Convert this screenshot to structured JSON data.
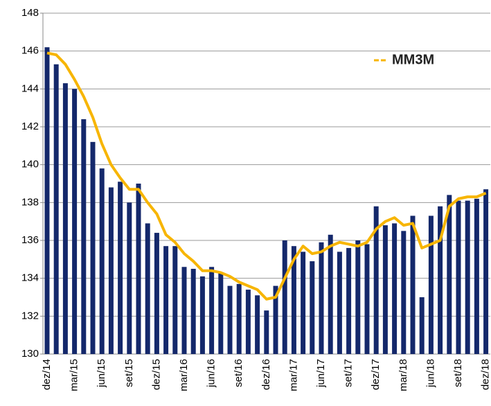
{
  "chart_data": {
    "type": "bar_line",
    "categories": [
      "dez/14",
      null,
      null,
      "mar/15",
      null,
      null,
      "jun/15",
      null,
      null,
      "set/15",
      null,
      null,
      "dez/15",
      null,
      null,
      "mar/16",
      null,
      null,
      "jun/16",
      null,
      null,
      "set/16",
      null,
      null,
      "dez/16",
      null,
      null,
      "mar/17",
      null,
      null,
      "jun/17",
      null,
      null,
      "set/17",
      null,
      null,
      "dez/17",
      null,
      null,
      "mar/18",
      null,
      null,
      "jun/18",
      null,
      null,
      "set/18",
      null,
      null,
      "dez/18"
    ],
    "series": [
      {
        "type": "bar",
        "color": "#14286b",
        "values": [
          146.2,
          145.3,
          144.3,
          144.0,
          142.4,
          141.2,
          139.8,
          138.8,
          139.1,
          138.0,
          139.0,
          136.9,
          136.4,
          135.7,
          135.7,
          134.6,
          134.5,
          134.1,
          134.6,
          134.3,
          133.6,
          133.7,
          133.4,
          133.1,
          132.3,
          133.6,
          136.0,
          135.7,
          135.4,
          134.9,
          135.9,
          136.3,
          135.4,
          135.6,
          136.0,
          135.8,
          137.8,
          136.8,
          136.9,
          136.5,
          137.3,
          133.0,
          137.3,
          137.8,
          138.4,
          138.1,
          138.1,
          138.2,
          138.7
        ]
      },
      {
        "type": "line",
        "name": "MM3M",
        "color": "#f7b500",
        "values": [
          145.9,
          145.8,
          145.3,
          144.5,
          143.6,
          142.5,
          141.1,
          140.0,
          139.3,
          138.7,
          138.7,
          138.0,
          137.4,
          136.3,
          135.9,
          135.3,
          134.9,
          134.4,
          134.4,
          134.3,
          134.1,
          133.8,
          133.6,
          133.4,
          132.9,
          133.0,
          134.0,
          135.0,
          135.7,
          135.3,
          135.4,
          135.7,
          135.9,
          135.8,
          135.7,
          135.9,
          136.6,
          137.0,
          137.2,
          136.8,
          136.9,
          135.6,
          135.8,
          136.0,
          137.8,
          138.2,
          138.3,
          138.3,
          138.5
        ]
      }
    ],
    "ylim": [
      130,
      148
    ],
    "yticks": [
      130,
      132,
      134,
      136,
      138,
      140,
      142,
      144,
      146,
      148
    ],
    "grid": true,
    "legend": "top-right"
  }
}
